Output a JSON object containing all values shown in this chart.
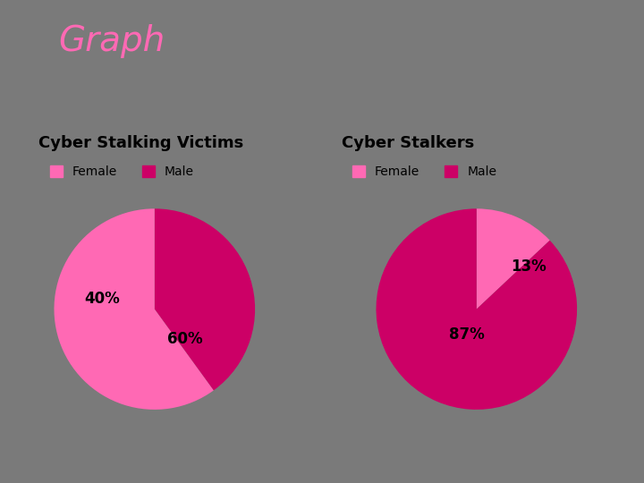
{
  "title": "Graph",
  "title_color": "#FF69B4",
  "title_fontsize": 28,
  "background_color": "#7a7a7a",
  "pie1_title": "Cyber Stalking Victims",
  "pie2_title": "Cyber Stalkers",
  "pie1_values": [
    40,
    60
  ],
  "pie2_values": [
    13,
    87
  ],
  "pie1_labels": [
    "40%",
    "60%"
  ],
  "pie2_labels": [
    "13%",
    "87%"
  ],
  "female_color": "#FF69B4",
  "male_color": "#CC0066",
  "legend_labels": [
    "Female",
    "Male"
  ],
  "subtitle_fontsize": 13,
  "label_fontsize": 12,
  "legend_fontsize": 10,
  "pie1_startangle": 90,
  "pie2_startangle": 90
}
